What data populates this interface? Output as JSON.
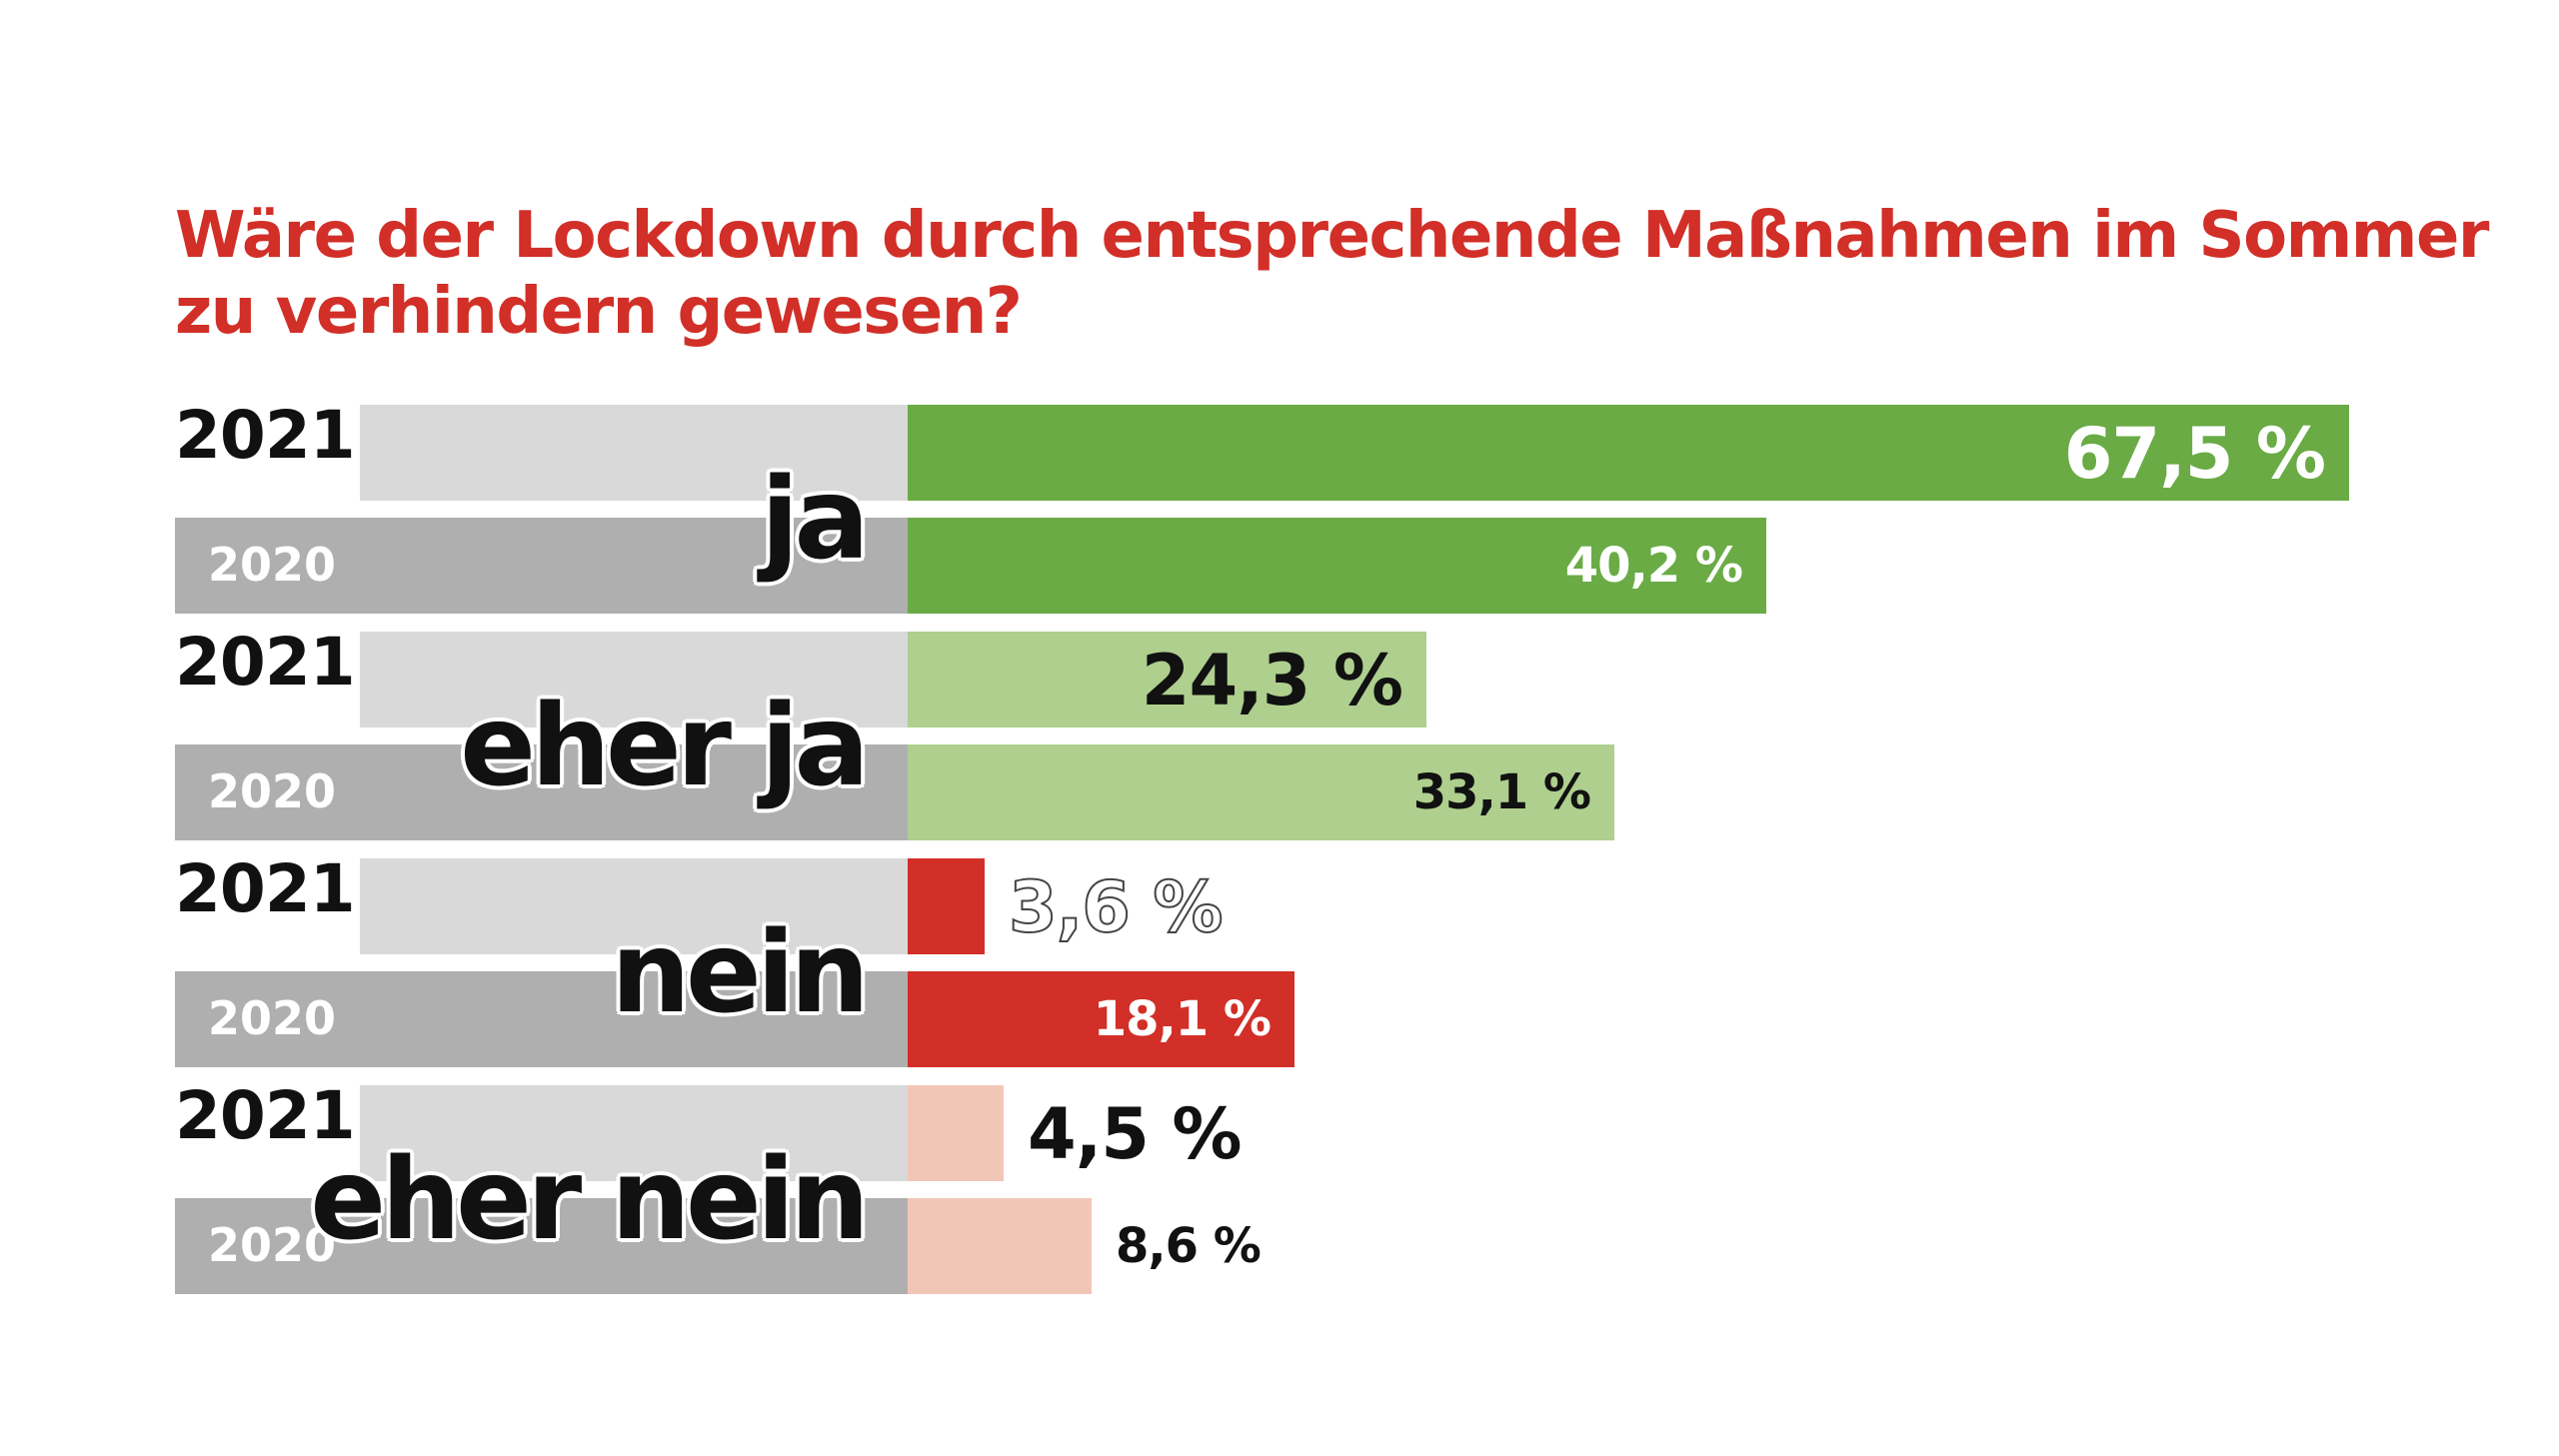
{
  "title_lines": [
    "Wäre der Lockdown durch entsprechende Maßnahmen im Sommer",
    "zu verhindern gewesen?"
  ],
  "colors": {
    "title": "#d12f27",
    "row_2021_bg": "#d9d9d9",
    "row_2020_bg": "#afafaf",
    "ja": "#6aab45",
    "eher_ja": "#aecf8e",
    "nein": "#d12f27",
    "eher_nein": "#f2c6b7"
  },
  "chart_data": {
    "type": "bar",
    "orientation": "horizontal",
    "title": "Wäre der Lockdown durch entsprechende Maßnahmen im Sommer zu verhindern gewesen?",
    "categories": [
      "ja",
      "eher ja",
      "nein",
      "eher nein"
    ],
    "series": [
      {
        "name": "2021",
        "values": [
          67.5,
          24.3,
          3.6,
          4.5
        ],
        "labels": [
          "67,5 %",
          "24,3 %",
          "3,6 %",
          "4,5 %"
        ]
      },
      {
        "name": "2020",
        "values": [
          40.2,
          33.1,
          18.1,
          8.6
        ],
        "labels": [
          "40,2 %",
          "33,1 %",
          "18,1 %",
          "8,6 %"
        ]
      }
    ],
    "xlim": [
      0,
      67.5
    ],
    "grid": false,
    "legend": "none"
  }
}
